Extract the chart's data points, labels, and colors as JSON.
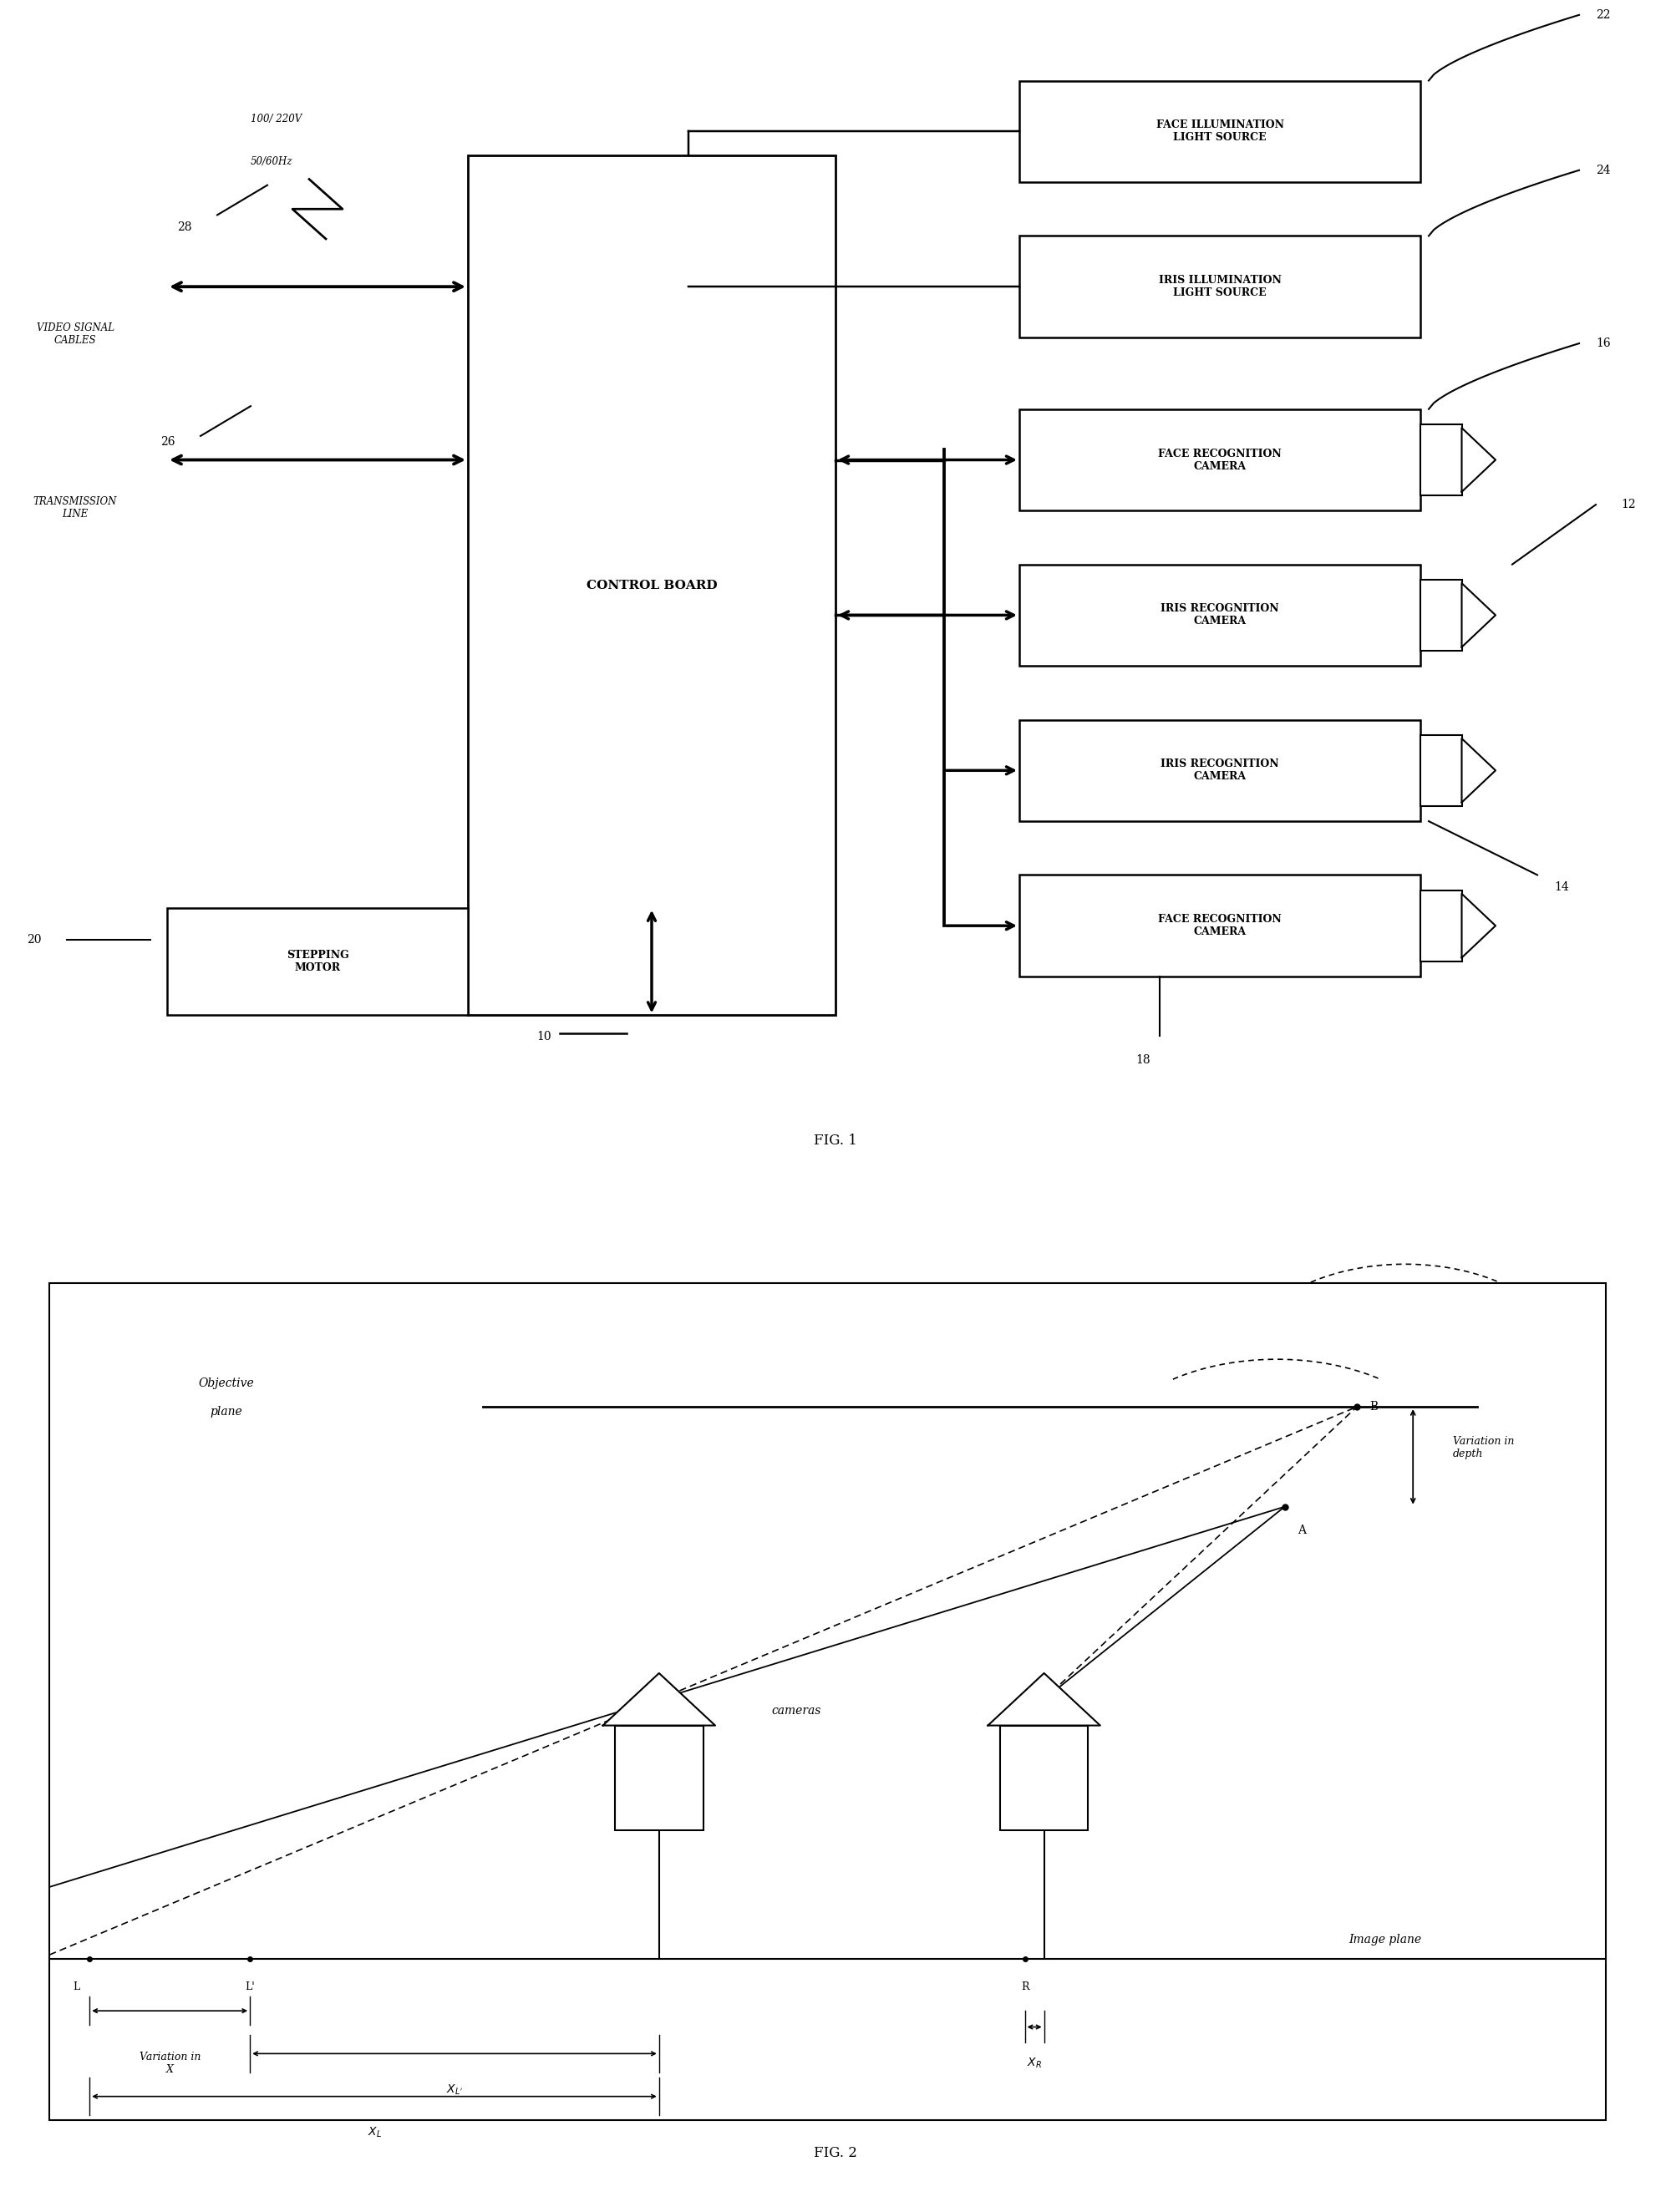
{
  "fig_width": 20.0,
  "fig_height": 26.48,
  "bg_color": "#ffffff",
  "fig1_caption": "FIG. 1",
  "fig2_caption": "FIG. 2",
  "control_board_label": "CONTROL BOARD",
  "stepping_motor_label": "STEPPING\nMOTOR",
  "power_line1": "100/ 220V",
  "power_line2": "50/60Hz",
  "video_signal_label": "VIDEO SIGNAL\nCABLES",
  "transmission_label": "TRANSMISSION\nLINE",
  "labels": {
    "face_illum": "FACE ILLUMINATION\nLIGHT SOURCE",
    "iris_illum": "IRIS ILLUMINATION\nLIGHT SOURCE",
    "face_recog_top": "FACE RECOGNITION\nCAMERA",
    "iris_recog_top": "IRIS RECOGNITION\nCAMERA",
    "iris_recog_bot": "IRIS RECOGNITION\nCAMERA",
    "face_recog_bot": "FACE RECOGNITION\nCAMERA"
  },
  "fig2_labels": {
    "objective_plane": "Objective\nplane",
    "image_plane": "Image plane",
    "cameras": "cameras",
    "variation_depth": "Variation in\ndepth",
    "variation_x": "Variation in\nX"
  }
}
